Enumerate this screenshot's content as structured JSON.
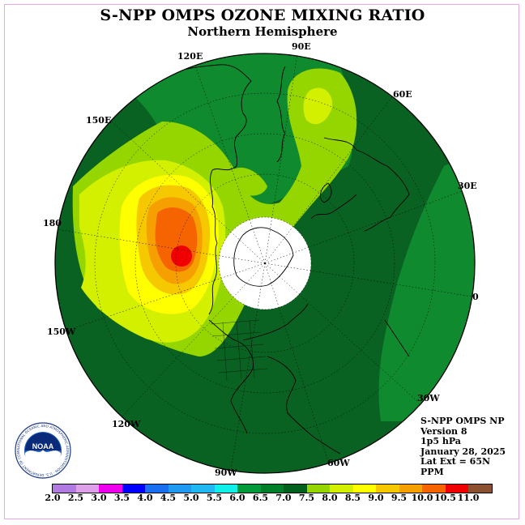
{
  "title": "S-NPP OMPS OZONE MIXING RATIO",
  "subtitle": "Northern Hemisphere",
  "longitude_labels": [
    "90E",
    "120E",
    "60E",
    "150E",
    "30E",
    "180",
    "0",
    "150W",
    "30W",
    "120W",
    "60W",
    "90W"
  ],
  "info": {
    "line1": "S-NPP OMPS NP",
    "line2": "Version 8",
    "line3": "1p5 hPa",
    "line4": "January 28, 2025",
    "line5": "Lat Ext = 65N",
    "line6": "PPM"
  },
  "logo": {
    "text": "NOAA",
    "ring_text": "NATIONAL OCEANIC AND ATMOSPHERIC ADMINISTRATION · U.S. DEPARTMENT OF COMMERCE"
  },
  "colorbar": {
    "ticks": [
      "2.0",
      "2.5",
      "3.0",
      "3.5",
      "4.0",
      "4.5",
      "5.0",
      "5.5",
      "6.0",
      "6.5",
      "7.0",
      "7.5",
      "8.0",
      "8.5",
      "9.0",
      "9.5",
      "10.0",
      "10.5",
      "11.0"
    ],
    "colors": [
      "#b07ae0",
      "#dfa0ea",
      "#ee00ee",
      "#0000ff",
      "#1a6ef0",
      "#1f9af0",
      "#20b8f0",
      "#10f0e8",
      "#049a3a",
      "#007f2a",
      "#00601c",
      "#96d600",
      "#d2f000",
      "#ffff00",
      "#f5c800",
      "#f5a000",
      "#f56400",
      "#f00000",
      "#8a5030"
    ]
  },
  "map_colors": {
    "level_6_5": "#108a2e",
    "level_7_0": "#096222",
    "level_7_5": "#96d600",
    "level_8_0": "#d2f000",
    "level_8_5": "#ffff00",
    "level_9_0": "#f5c800",
    "level_9_5": "#f5a000",
    "level_10_0": "#f56400",
    "level_10_5": "#f00000"
  }
}
